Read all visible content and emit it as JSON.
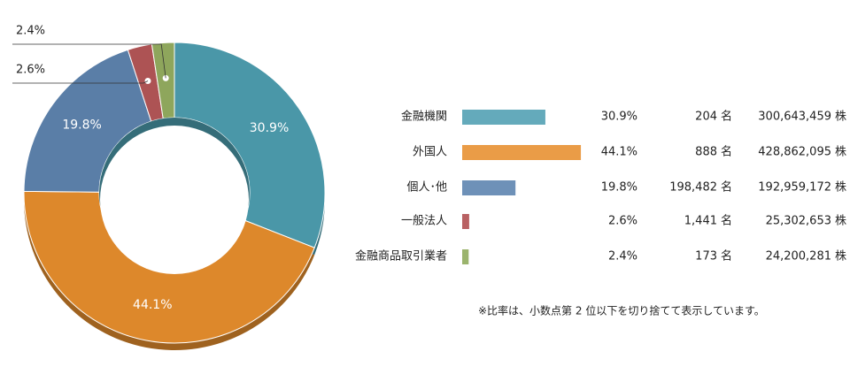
{
  "chart_data": {
    "type": "donut",
    "categories": [
      "金融機関",
      "外国人",
      "個人･他",
      "一般法人",
      "金融商品取引業者"
    ],
    "values": [
      30.9,
      44.1,
      19.8,
      2.6,
      2.4
    ],
    "value_labels": [
      "30.9%",
      "44.1%",
      "19.8%",
      "2.6%",
      "2.4%"
    ],
    "colors": [
      "#4a97a8",
      "#dd882b",
      "#5a7ea7",
      "#ad5354",
      "#8ea65c"
    ],
    "bar_colors": [
      "#64aabb",
      "#ea9c47",
      "#6e91b8",
      "#b96163",
      "#9bb46d"
    ],
    "holders": [
      "204",
      "888",
      "198,482",
      "1,441",
      "173"
    ],
    "holders_unit": "名",
    "shares": [
      "300,643,459",
      "428,862,095",
      "192,959,172",
      "25,302,653",
      "24,200,281"
    ],
    "shares_unit": "株",
    "note": "※比率は、小数点第 2 位以下を切り捨てて表示しています。"
  }
}
